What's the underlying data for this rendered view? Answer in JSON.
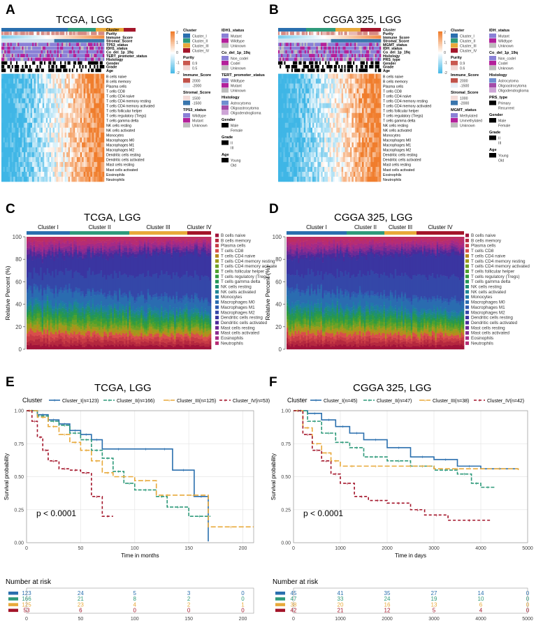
{
  "colors": {
    "cluster": [
      "#2a6fae",
      "#2e9a7a",
      "#e8a93a",
      "#a3152a"
    ],
    "heat_low": "#3fb6e6",
    "heat_mid": "#ffffff",
    "heat_high": "#f07d2c",
    "purity": "#c9584f",
    "immune": "#c0524a",
    "stromal": "#3a76ad",
    "mutant": "#b3209a",
    "wildtype": "#8a80d6",
    "unknown": "#bdbdbd",
    "astro": "#6f8fd0",
    "oligoastro": "#a44aa8",
    "oligo": "#cda4d6",
    "cell_palette": [
      "#a1133a",
      "#b5283f",
      "#c83b45",
      "#d94e4b",
      "#b88a1e",
      "#9e9a1c",
      "#6fa126",
      "#4ea02d",
      "#339b3f",
      "#249655",
      "#1f8e74",
      "#1e8594",
      "#207aa8",
      "#2a6cb0",
      "#2e5bb0",
      "#3447a8",
      "#3a35a1",
      "#4b2a9a",
      "#6a2a96",
      "#8c2b8f",
      "#a52a86",
      "#b62c74",
      "#bd2f62"
    ]
  },
  "panels": {
    "A": {
      "letter": "A",
      "title": "TCGA, LGG"
    },
    "B": {
      "letter": "B",
      "title": "CGGA 325, LGG"
    },
    "C": {
      "letter": "C",
      "title": "TCGA, LGG"
    },
    "D": {
      "letter": "D",
      "title": "CGGA 325, LGG"
    },
    "E": {
      "letter": "E",
      "title": "TCGA, LGG"
    },
    "F": {
      "letter": "F",
      "title": "CGGA 325, LGG"
    }
  },
  "heatmap_A": {
    "annotation_rows": [
      "Cluster",
      "Purity",
      "Immune_Score",
      "Stromal_Score",
      "TP53_status",
      "IDH1_status",
      "Co_del_1p_19q",
      "TERT_promoter_status",
      "Histology",
      "Gender",
      "Grade",
      "Age"
    ],
    "cell_rows": [
      "B cells naive",
      "B cells memory",
      "Plasma cells",
      "T cells CD8",
      "T cells CD4 naive",
      "T cells CD4 memory resting",
      "T cells CD4 memory activated",
      "T cells follicular helper",
      "T cells regulatory (Tregs)",
      "T cells gamma delta",
      "NK cells resting",
      "NK cells activated",
      "Monocytes",
      "Macrophages M0",
      "Macrophages M1",
      "Macrophages M2",
      "Dendritic cells resting",
      "Dendritic cells activated",
      "Mast cells resting",
      "Mast cells activated",
      "Eosinophils",
      "Neutrophils"
    ],
    "scale_ticks": [
      "2",
      "1",
      "0",
      "-1",
      "-2"
    ],
    "legend_col1": [
      {
        "title": "Cluster",
        "items": [
          "Cluster_I",
          "Cluster_II",
          "Cluster_III",
          "Cluster_IV"
        ]
      },
      {
        "title": "Purity",
        "items": [
          "0.9",
          "0.5"
        ]
      },
      {
        "title": "Immune_Score",
        "items": [
          "2000",
          "-2000"
        ]
      },
      {
        "title": "Stromal_Score",
        "items": [
          "1500",
          "-1500"
        ]
      },
      {
        "title": "TP53_status",
        "items": [
          "Wildtype",
          "Mutant",
          "Unknown"
        ]
      }
    ],
    "legend_col2": [
      {
        "title": "IDH1_status",
        "items": [
          "Mutant",
          "Wildtype",
          "Unknown"
        ]
      },
      {
        "title": "Co_del_1p_19q",
        "items": [
          "Non_codel",
          "Codel",
          "Unknown"
        ]
      },
      {
        "title": "TERT_promoter_status",
        "items": [
          "Wildtype",
          "Mutant",
          "Unknown"
        ]
      },
      {
        "title": "Histology",
        "items": [
          "Astrocytoma",
          "Oligoastrocytoma",
          "Oligodendroglioma"
        ]
      },
      {
        "title": "Gender",
        "items": [
          "Male",
          "Female"
        ]
      },
      {
        "title": "Grade",
        "items": [
          "II",
          "III"
        ]
      },
      {
        "title": "Age",
        "items": [
          "Young",
          "Old"
        ]
      }
    ]
  },
  "heatmap_B": {
    "annotation_rows": [
      "Cluster",
      "Purity",
      "Immune_Score",
      "Stromal_Score",
      "MGMT_status",
      "IDH_status",
      "Co_del_1p_19q",
      "Histology",
      "PRS_type",
      "Gender",
      "Grade",
      "Age"
    ],
    "cell_rows": [
      "B cells naive",
      "B cells memory",
      "Plasma cells",
      "T cells CD8",
      "T cells CD4 naive",
      "T cells CD4 memory resting",
      "T cells CD4 memory activated",
      "T cells follicular helper",
      "T cells regulatory (Tregs)",
      "T cells gamma delta",
      "NK cells resting",
      "NK cells activated",
      "Monocytes",
      "Macrophages M0",
      "Macrophages M1",
      "Macrophages M2",
      "Dendritic cells resting",
      "Dendritic cells activated",
      "Mast cells resting",
      "Mast cells activated",
      "Eosinophils",
      "Neutrophils"
    ],
    "scale_ticks": [
      "2",
      "1",
      "0",
      "-1",
      "-2"
    ],
    "legend_col1": [
      {
        "title": "Cluster",
        "items": [
          "Cluster_I",
          "Cluster_II",
          "Cluster_III",
          "Cluster_IV"
        ]
      },
      {
        "title": "Purity",
        "items": [
          "0.9",
          "0.6"
        ]
      },
      {
        "title": "Immune_Score",
        "items": [
          "2000",
          "-1500"
        ]
      },
      {
        "title": "Stromal_Score",
        "items": [
          "1000",
          "-2000"
        ]
      },
      {
        "title": "MGMT_status",
        "items": [
          "Methylated",
          "Unmethylated",
          "Unknown"
        ]
      }
    ],
    "legend_col2": [
      {
        "title": "IDH_status",
        "items": [
          "Mutant",
          "Wildtype",
          "Unknown"
        ]
      },
      {
        "title": "Co_del_1p_19q",
        "items": [
          "Non_codel",
          "Codel",
          "Unknown"
        ]
      },
      {
        "title": "Histology",
        "items": [
          "Astrocytoma",
          "Oligoastrocytoma",
          "Oligodendroglioma"
        ]
      },
      {
        "title": "PRS_type",
        "items": [
          "Primary",
          "Recurrent"
        ]
      },
      {
        "title": "Gender",
        "items": [
          "Male",
          "Female"
        ]
      },
      {
        "title": "Grade",
        "items": [
          "II",
          "III"
        ]
      },
      {
        "title": "Age",
        "items": [
          "Young",
          "Old"
        ]
      }
    ]
  },
  "stacked_C": {
    "ylabel": "Relative Percent (%)",
    "y_ticks": [
      "0",
      "20",
      "40",
      "60",
      "80",
      "100"
    ],
    "cluster_labels": [
      "Cluster I",
      "Cluster II",
      "Cluster III",
      "Cluster IV"
    ],
    "legend": [
      "B cells naive",
      "B cells memory",
      "Plasma cells",
      "T cells CD8",
      "T cells CD4 naive",
      "T cells CD4 memory resting",
      "T cells CD4 memory activate",
      "T cells follicular helper",
      "T cells regulatory (Tregs)",
      "T cells gamma delta",
      "NK cells resting",
      "NK cells activated",
      "Monocytes",
      "Macrophages M0",
      "Macrophages M1",
      "Macrophages M2",
      "Dendritic cells resting",
      "Dendritic cells activated",
      "Mast cells resting",
      "Mast cells activated",
      "Eosinophils",
      "Neutrophils"
    ]
  },
  "stacked_D": {
    "ylabel": "Relative Percent (%)",
    "y_ticks": [
      "0",
      "20",
      "40",
      "60",
      "80",
      "100"
    ],
    "cluster_labels": [
      "Cluster I",
      "Cluster II",
      "Cluster III",
      "Cluster IV"
    ],
    "legend": [
      "B cells naive",
      "B cells memory",
      "Plasma cells",
      "T cells CD8",
      "T cells CD4 naive",
      "T cells CD4 memory resting",
      "T cells CD4 memory activated",
      "T cells follicular helper",
      "T cells regulatory (Tregs)",
      "T cells gamma delta",
      "NK cells resting",
      "NK cells activated",
      "Monocytes",
      "Macrophages M0",
      "Macrophages M1",
      "Macrophages M2",
      "Dendritic cells resting",
      "Dendritic cells activated",
      "Mast cells resting",
      "Mast cells activated",
      "Eosinophils",
      "Neutrophils"
    ]
  },
  "chart_data": [
    {
      "type": "line",
      "title": "TCGA, LGG",
      "xlabel": "Time in months",
      "ylabel": "Survival probability",
      "xlim": [
        0,
        210
      ],
      "ylim": [
        0,
        1
      ],
      "x_ticks": [
        0,
        50,
        100,
        150,
        200
      ],
      "y_ticks": [
        "0.00",
        "0.25",
        "0.50",
        "0.75",
        "1.00"
      ],
      "legend_title": "Cluster",
      "annotation": "p < 0.0001",
      "series": [
        {
          "name": "Cluster_I(n=123)",
          "x": [
            0,
            10,
            20,
            30,
            40,
            50,
            60,
            70,
            100,
            120,
            135,
            155,
            168
          ],
          "y": [
            1.0,
            0.97,
            0.93,
            0.9,
            0.85,
            0.82,
            0.78,
            0.71,
            0.71,
            0.71,
            0.55,
            0.35,
            0.01
          ]
        },
        {
          "name": "Cluster_II(n=166)",
          "x": [
            0,
            10,
            20,
            30,
            40,
            50,
            60,
            70,
            80,
            90,
            100,
            120,
            130,
            150,
            170
          ],
          "y": [
            1.0,
            0.96,
            0.92,
            0.89,
            0.83,
            0.78,
            0.7,
            0.64,
            0.54,
            0.45,
            0.4,
            0.35,
            0.27,
            0.2,
            0.2
          ]
        },
        {
          "name": "Cluster_III(n=125)",
          "x": [
            0,
            10,
            20,
            30,
            40,
            50,
            60,
            70,
            80,
            100,
            120,
            140,
            168,
            210
          ],
          "y": [
            1.0,
            0.95,
            0.88,
            0.82,
            0.76,
            0.7,
            0.62,
            0.53,
            0.5,
            0.47,
            0.36,
            0.36,
            0.12,
            0.12
          ]
        },
        {
          "name": "Cluster_IV(n=53)",
          "x": [
            0,
            5,
            10,
            15,
            20,
            30,
            40,
            50,
            60,
            70,
            80
          ],
          "y": [
            1.0,
            0.92,
            0.8,
            0.7,
            0.62,
            0.56,
            0.55,
            0.53,
            0.35,
            0.2,
            0.2
          ]
        }
      ],
      "risk_table": {
        "title": "Number at risk",
        "x_ticks": [
          0,
          50,
          100,
          150,
          200
        ],
        "rows": [
          [
            123,
            24,
            5,
            3,
            0
          ],
          [
            166,
            21,
            8,
            2,
            0
          ],
          [
            125,
            23,
            4,
            2,
            1
          ],
          [
            53,
            6,
            0,
            0,
            0
          ]
        ]
      }
    },
    {
      "type": "line",
      "title": "CGGA 325, LGG",
      "xlabel": "Time in days",
      "ylabel": "Survival probability",
      "xlim": [
        0,
        5000
      ],
      "ylim": [
        0,
        1
      ],
      "x_ticks": [
        0,
        1000,
        2000,
        3000,
        4000,
        5000
      ],
      "y_ticks": [
        "0.00",
        "0.25",
        "0.50",
        "0.75",
        "1.00"
      ],
      "legend_title": "Cluster",
      "annotation": "p < 0.0001",
      "series": [
        {
          "name": "Cluster_I(n=45)",
          "x": [
            0,
            300,
            600,
            900,
            1200,
            1500,
            2000,
            2500,
            3000,
            3500,
            4000,
            4800
          ],
          "y": [
            1.0,
            0.98,
            0.93,
            0.88,
            0.83,
            0.78,
            0.72,
            0.65,
            0.63,
            0.58,
            0.56,
            0.56
          ]
        },
        {
          "name": "Cluster_II(n=47)",
          "x": [
            0,
            300,
            600,
            900,
            1200,
            1500,
            2000,
            2500,
            3000,
            3500,
            3800,
            4000,
            4300
          ],
          "y": [
            1.0,
            0.92,
            0.83,
            0.76,
            0.72,
            0.65,
            0.62,
            0.58,
            0.55,
            0.52,
            0.45,
            0.42,
            0.42
          ]
        },
        {
          "name": "Cluster_III(n=38)",
          "x": [
            0,
            200,
            400,
            600,
            800,
            1000,
            1500,
            2000,
            3000,
            4000,
            4800
          ],
          "y": [
            1.0,
            0.87,
            0.75,
            0.68,
            0.62,
            0.58,
            0.58,
            0.58,
            0.56,
            0.56,
            0.55
          ]
        },
        {
          "name": "Cluster_IV(n=42)",
          "x": [
            0,
            200,
            400,
            600,
            800,
            1000,
            1300,
            1600,
            2000,
            2500,
            2800,
            3300,
            4200
          ],
          "y": [
            1.0,
            0.82,
            0.7,
            0.62,
            0.52,
            0.45,
            0.35,
            0.32,
            0.3,
            0.25,
            0.21,
            0.17,
            0.17
          ]
        }
      ],
      "risk_table": {
        "title": "Number at risk",
        "x_ticks": [
          0,
          1000,
          2000,
          3000,
          4000,
          5000
        ],
        "rows": [
          [
            45,
            41,
            35,
            27,
            14,
            0
          ],
          [
            47,
            33,
            24,
            19,
            10,
            0
          ],
          [
            38,
            20,
            16,
            13,
            6,
            0
          ],
          [
            42,
            21,
            12,
            5,
            4,
            0
          ]
        ]
      }
    }
  ]
}
